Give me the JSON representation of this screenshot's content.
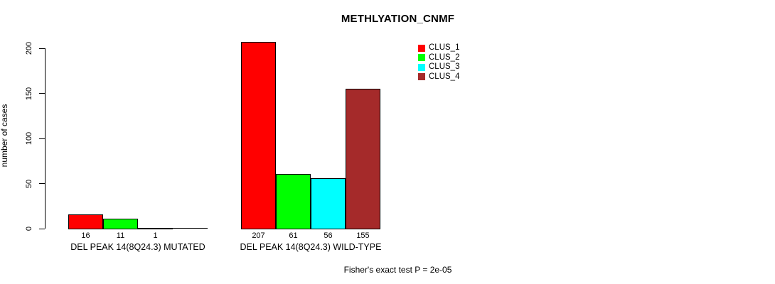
{
  "chart_data": {
    "type": "bar",
    "title": "METHLYATION_CNMF",
    "ylabel": "number of cases",
    "xlabel": "",
    "ylim": [
      0,
      200
    ],
    "yticks": [
      0,
      50,
      100,
      150,
      200
    ],
    "grid": false,
    "legend_position": "top-right",
    "bar_value_labels": true,
    "hide_zero_value_labels": true,
    "categories": [
      "DEL PEAK 14(8Q24.3) MUTATED",
      "DEL PEAK 14(8Q24.3) WILD-TYPE"
    ],
    "series": [
      {
        "name": "CLUS_1",
        "color": "#ff0000",
        "values": [
          16,
          207
        ]
      },
      {
        "name": "CLUS_2",
        "color": "#00ff00",
        "values": [
          11,
          61
        ]
      },
      {
        "name": "CLUS_3",
        "color": "#00ffff",
        "values": [
          1,
          56
        ]
      },
      {
        "name": "CLUS_4",
        "color": "#a52a2a",
        "values": [
          0,
          155
        ]
      }
    ],
    "annotation": "Fisher's exact test P = 2e-05"
  },
  "colors": {
    "axis": "#000000",
    "background": "#ffffff",
    "bar_border": "#000000"
  }
}
